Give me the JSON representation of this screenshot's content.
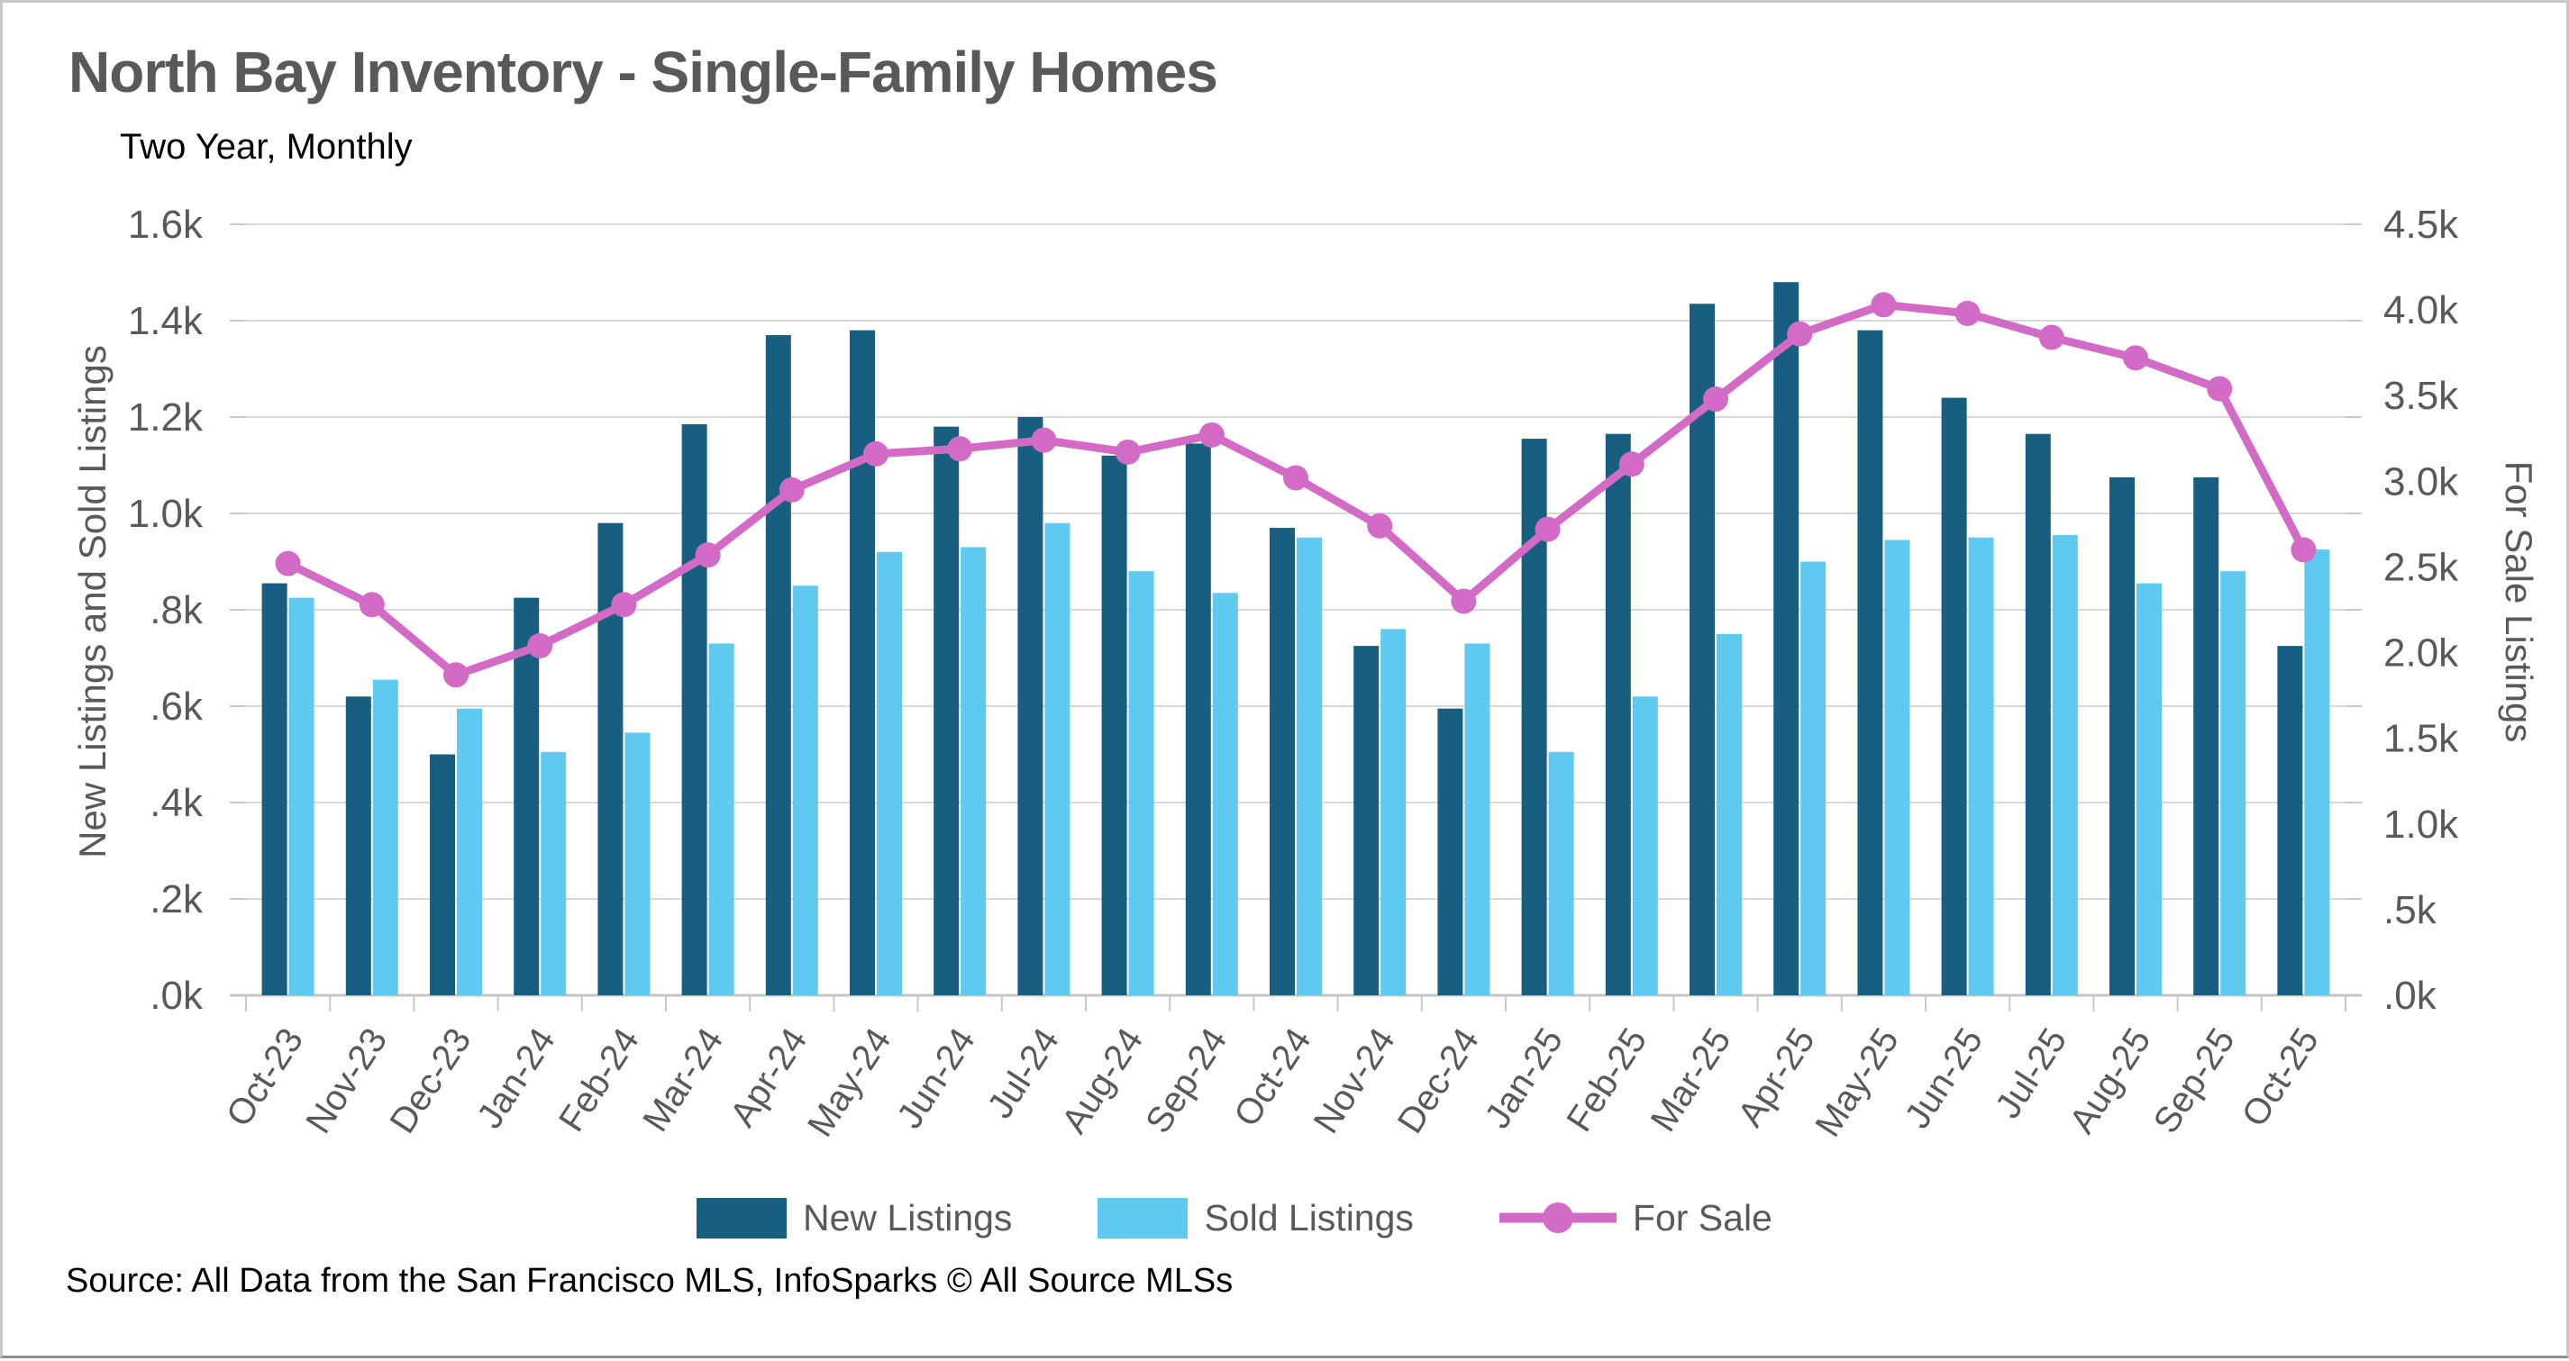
{
  "title": "North Bay Inventory - Single-Family Homes",
  "subtitle": "Two Year, Monthly",
  "source": "Source: All Data from the San Francisco MLS, InfoSparks © All Source MLSs",
  "legend": {
    "new_listings": "New Listings",
    "sold_listings": "Sold Listings",
    "for_sale": "For Sale"
  },
  "axes": {
    "left": {
      "title": "New Listings and Sold Listings",
      "ticks_top_to_bottom": [
        "1.6k",
        "1.4k",
        "1.2k",
        "1.0k",
        ".8k",
        ".6k",
        ".4k",
        ".2k",
        ".0k"
      ],
      "max": 1.6
    },
    "right": {
      "title": "For Sale Listings",
      "ticks_top_to_bottom": [
        "4.5k",
        "4.0k",
        "3.5k",
        "3.0k",
        "2.5k",
        "2.0k",
        "1.5k",
        "1.0k",
        ".5k",
        ".0k"
      ],
      "max": 4.5
    }
  },
  "colors": {
    "new_listings": "#175e80",
    "sold_listings": "#5fc9f0",
    "for_sale": "#d36bc6",
    "gridline": "#d9d9d9",
    "baseline": "#c4c4c4",
    "tick": "#c9c9c9",
    "axis_text": "#595959"
  },
  "chart_data": {
    "type": "bar+line",
    "unit": "thousands of listings",
    "grid": "horizontal",
    "legend_position": "bottom",
    "categories": [
      "Oct-23",
      "Nov-23",
      "Dec-23",
      "Jan-24",
      "Feb-24",
      "Mar-24",
      "Apr-24",
      "May-24",
      "Jun-24",
      "Jul-24",
      "Aug-24",
      "Sep-24",
      "Oct-24",
      "Nov-24",
      "Dec-24",
      "Jan-25",
      "Feb-25",
      "Mar-25",
      "Apr-25",
      "May-25",
      "Jun-25",
      "Jul-25",
      "Aug-25",
      "Sep-25",
      "Oct-25"
    ],
    "left_axis_label": "New Listings and Sold Listings",
    "right_axis_label": "For Sale Listings",
    "left_ylim": [
      0,
      1.6
    ],
    "right_ylim": [
      0,
      4.5
    ],
    "series": [
      {
        "name": "New Listings",
        "type": "bar",
        "axis": "left",
        "values_k": [
          0.855,
          0.62,
          0.5,
          0.825,
          0.98,
          1.185,
          1.37,
          1.38,
          1.18,
          1.2,
          1.12,
          1.145,
          0.97,
          0.725,
          0.595,
          1.155,
          1.165,
          1.435,
          1.48,
          1.38,
          1.24,
          1.165,
          1.075,
          1.075,
          0.725
        ]
      },
      {
        "name": "Sold Listings",
        "type": "bar",
        "axis": "left",
        "values_k": [
          0.825,
          0.655,
          0.595,
          0.505,
          0.545,
          0.73,
          0.85,
          0.92,
          0.93,
          0.98,
          0.88,
          0.835,
          0.95,
          0.76,
          0.73,
          0.505,
          0.62,
          0.75,
          0.9,
          0.945,
          0.95,
          0.955,
          0.855,
          0.88,
          0.925
        ]
      },
      {
        "name": "For Sale",
        "type": "line",
        "axis": "right",
        "values_k": [
          2.52,
          2.28,
          1.87,
          2.04,
          2.28,
          2.57,
          2.95,
          3.16,
          3.19,
          3.24,
          3.17,
          3.27,
          3.02,
          2.74,
          2.3,
          2.72,
          3.1,
          3.48,
          3.86,
          4.03,
          3.98,
          3.84,
          3.72,
          3.54,
          2.6
        ]
      }
    ]
  }
}
